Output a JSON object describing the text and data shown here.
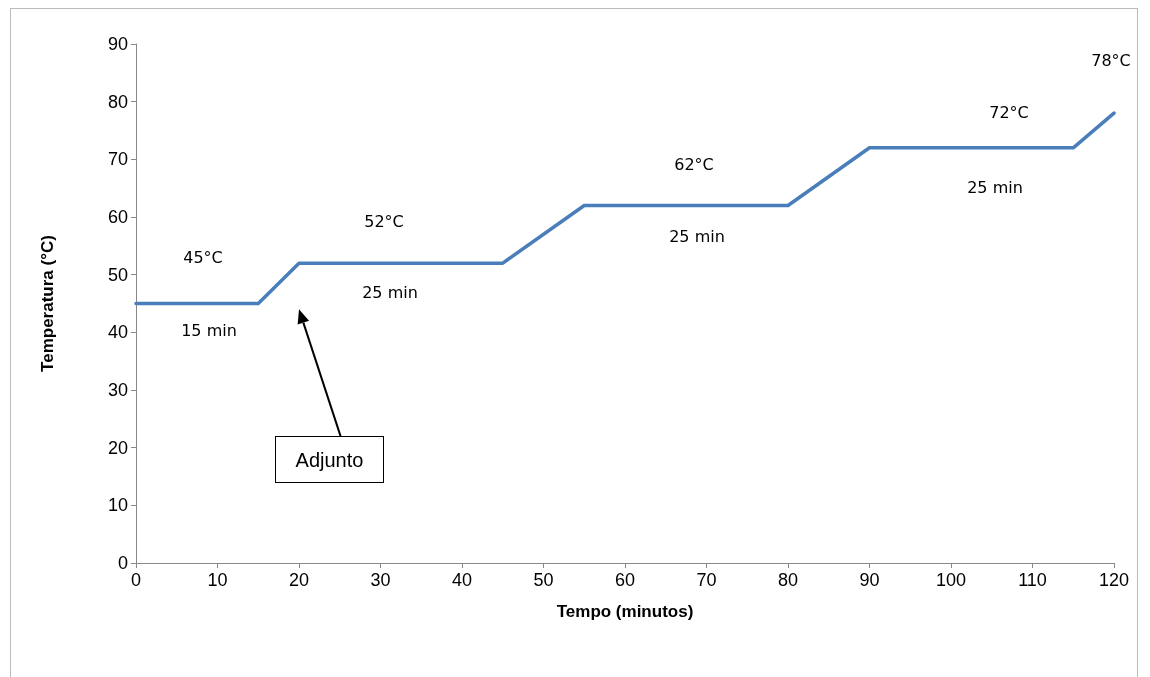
{
  "chart_data": {
    "type": "line",
    "xlabel": "Tempo (minutos)",
    "ylabel": "Temperatura (°C)",
    "x": [
      0,
      15,
      20,
      45,
      55,
      80,
      90,
      115,
      120
    ],
    "series": [
      {
        "color": "#4a7ebb",
        "values": [
          45,
          45,
          52,
          52,
          62,
          62,
          72,
          72,
          78
        ]
      }
    ],
    "xlim": [
      0,
      120
    ],
    "xticks": [
      0,
      10,
      20,
      30,
      40,
      50,
      60,
      70,
      80,
      90,
      100,
      110,
      120
    ],
    "ylim": [
      0,
      90
    ],
    "yticks": [
      0,
      10,
      20,
      30,
      40,
      50,
      60,
      70,
      80,
      90
    ],
    "grid": false,
    "marker": "none",
    "line_style": "solid",
    "annotations": [
      "45°C",
      "15 min",
      "52°C",
      "25 min",
      "62°C",
      "25 min",
      "72°C",
      "25 min",
      "78°C",
      "Adjunto"
    ]
  }
}
